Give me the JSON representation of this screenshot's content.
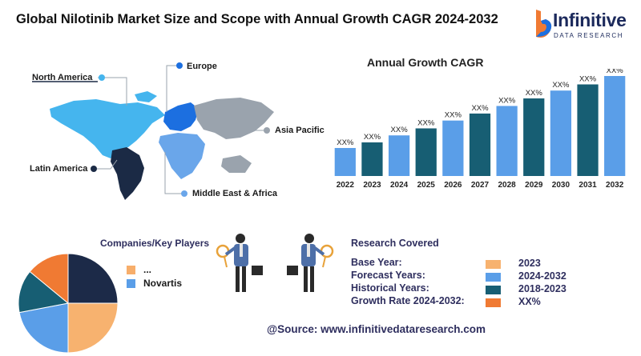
{
  "title": "Global Nilotinib Market Size and Scope with Annual Growth CAGR 2024-2032",
  "logo": {
    "name": "Infinitive",
    "subtitle": "DATA RESEARCH"
  },
  "map": {
    "regions": [
      {
        "name": "North America",
        "color": "#45b5ee"
      },
      {
        "name": "Europe",
        "color": "#1c6fe0"
      },
      {
        "name": "Asia Pacific",
        "color": "#9aa3ad"
      },
      {
        "name": "Latin America",
        "color": "#1b2a45"
      },
      {
        "name": "Middle East & Africa",
        "color": "#6aa6ea"
      }
    ]
  },
  "chart_data": {
    "type": "bar",
    "title": "Annual Growth CAGR",
    "categories": [
      "2022",
      "2023",
      "2024",
      "2025",
      "2026",
      "2027",
      "2028",
      "2029",
      "2030",
      "2031",
      "2032"
    ],
    "values": [
      1,
      1.2,
      1.45,
      1.7,
      1.98,
      2.23,
      2.5,
      2.77,
      3.05,
      3.27,
      3.57
    ],
    "data_labels": [
      "XX%",
      "XX%",
      "XX%",
      "XX%",
      "XX%",
      "XX%",
      "XX%",
      "XX%",
      "XX%",
      "XX%",
      "XX%"
    ],
    "colors": [
      "#5a9ee8",
      "#175e73",
      "#5a9ee8",
      "#175e73",
      "#5a9ee8",
      "#175e73",
      "#5a9ee8",
      "#175e73",
      "#5a9ee8",
      "#175e73",
      "#5a9ee8"
    ],
    "note": "values estimated as relative bar heights; chart shows only XX% labels"
  },
  "companies": {
    "title": "Companies/Key Players",
    "legend": [
      {
        "label": "...",
        "color": "#f7ae6b"
      },
      {
        "label": "Novartis",
        "color": "#5a9ee8"
      }
    ],
    "pie": [
      {
        "value": 25,
        "color": "#1c2a48"
      },
      {
        "value": 25,
        "color": "#f7b26f"
      },
      {
        "value": 22,
        "color": "#5a9ee8"
      },
      {
        "value": 14,
        "color": "#175e73"
      },
      {
        "value": 14,
        "color": "#f07a33"
      }
    ]
  },
  "research": {
    "title": "Research Covered",
    "rows": [
      {
        "label": "Base Year:",
        "value": "2023",
        "color": "#f7b26f"
      },
      {
        "label": "Forecast Years:",
        "value": "2024-2032",
        "color": "#5a9ee8"
      },
      {
        "label": "Historical Years:",
        "value": "2018-2023",
        "color": "#175e73"
      },
      {
        "label": "Growth Rate 2024-2032:",
        "value": "XX%",
        "color": "#f07a33"
      }
    ]
  },
  "source": "@Source: www.infinitivedataresearch.com"
}
